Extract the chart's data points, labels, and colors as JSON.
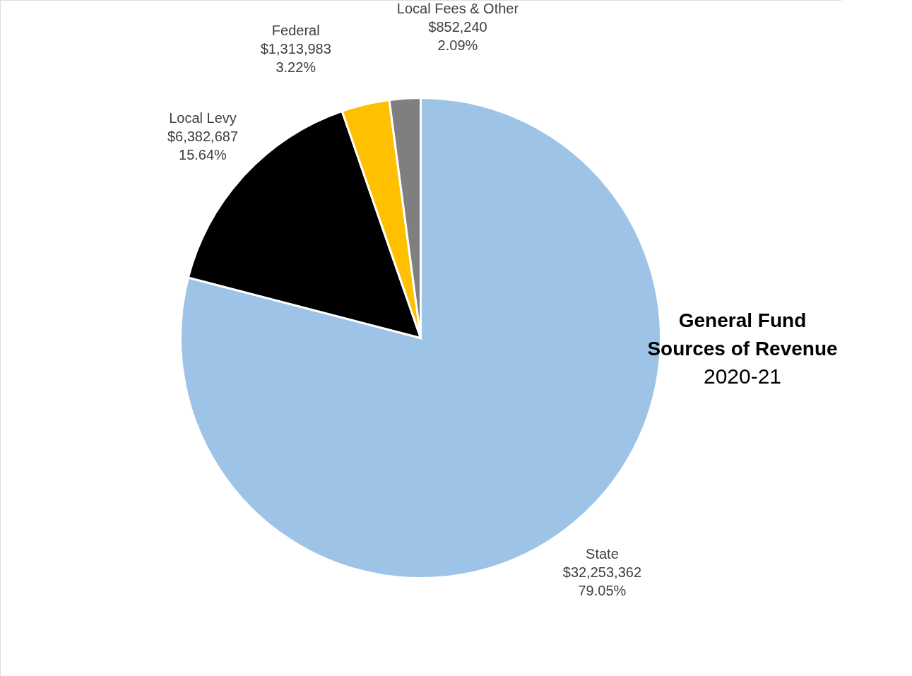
{
  "chart_data": {
    "type": "pie",
    "title": "General Fund Sources of Revenue",
    "subtitle": "2020-21",
    "categories": [
      "State",
      "Local Levy",
      "Federal",
      "Local Fees & Other"
    ],
    "values": [
      32253362,
      6382687,
      1313983,
      852240
    ],
    "value_labels": [
      "$32,253,362\n79.05%",
      "$6,382,687\n15.64%",
      "$1,313,983\n3.22%",
      "$852,240\n2.09%"
    ],
    "colors": [
      "#9dc3e6",
      "#000000",
      "#ffc000",
      "#7f7f7f"
    ]
  }
}
